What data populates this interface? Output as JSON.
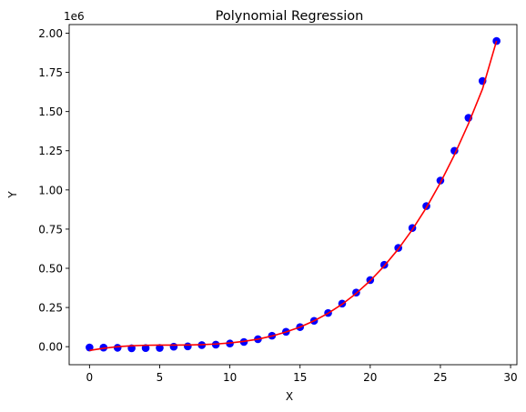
{
  "chart_data": {
    "type": "scatter",
    "title": "Polynomial Regression",
    "xlabel": "X",
    "ylabel": "Y",
    "y_offset_label": "1e6",
    "xlim": [
      -1.45,
      30.45
    ],
    "ylim": [
      -115000,
      2055000
    ],
    "x_ticks": [
      0,
      5,
      10,
      15,
      20,
      25,
      30
    ],
    "x_tick_labels": [
      "0",
      "5",
      "10",
      "15",
      "20",
      "25",
      "30"
    ],
    "y_ticks": [
      0,
      250000,
      500000,
      750000,
      1000000,
      1250000,
      1500000,
      1750000,
      2000000
    ],
    "y_tick_labels": [
      "0.00",
      "0.25",
      "0.50",
      "0.75",
      "1.00",
      "1.25",
      "1.50",
      "1.75",
      "2.00"
    ],
    "grid": false,
    "legend": "none",
    "series": [
      {
        "kind": "scatter",
        "color": "#0000ff",
        "x": [
          0,
          1,
          2,
          3,
          4,
          5,
          6,
          7,
          8,
          9,
          10,
          11,
          12,
          13,
          14,
          15,
          16,
          17,
          18,
          19,
          20,
          21,
          22,
          23,
          24,
          25,
          26,
          27,
          28,
          29
        ],
        "y": [
          -5000,
          -6000,
          -7000,
          -10000,
          -9000,
          -8000,
          0,
          2000,
          10000,
          13000,
          20000,
          30000,
          48000,
          70000,
          95000,
          125000,
          165000,
          215000,
          275000,
          345000,
          425000,
          522000,
          630000,
          757000,
          897000,
          1060000,
          1250000,
          1460000,
          1695000,
          1950000
        ]
      },
      {
        "kind": "line",
        "color": "#ff0000",
        "x": [
          0,
          1,
          2,
          3,
          4,
          5,
          6,
          7,
          8,
          9,
          10,
          11,
          12,
          13,
          14,
          15,
          16,
          17,
          18,
          19,
          20,
          21,
          22,
          23,
          24,
          25,
          26,
          27,
          28,
          29
        ],
        "y": [
          -24000,
          -10000,
          0,
          6000,
          9000,
          10000,
          10000,
          11000,
          13000,
          17000,
          24000,
          34000,
          48000,
          68000,
          94000,
          125000,
          165000,
          213000,
          271000,
          340000,
          421000,
          515000,
          623000,
          747000,
          887000,
          1046000,
          1224000,
          1423000,
          1644000,
          1951000
        ]
      }
    ]
  }
}
